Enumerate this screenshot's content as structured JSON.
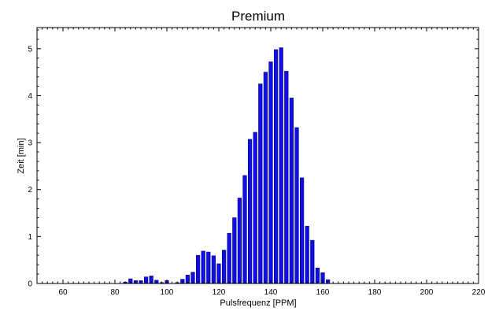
{
  "chart_data": {
    "type": "bar",
    "title": "Premium",
    "xlabel": "Pulsfrequenz [PPM]",
    "ylabel": "Zeit [min]",
    "xlim": [
      50,
      220
    ],
    "ylim": [
      0,
      5.45
    ],
    "x_ticks": [
      60,
      80,
      100,
      120,
      140,
      160,
      180,
      200,
      220
    ],
    "y_ticks": [
      0,
      1,
      2,
      3,
      4,
      5
    ],
    "grid": false,
    "bar_color": "#1010e6",
    "bar_color_dark": "#000080",
    "x": [
      84,
      86,
      88,
      90,
      92,
      94,
      96,
      98,
      100,
      102,
      104,
      106,
      108,
      110,
      112,
      114,
      116,
      118,
      120,
      122,
      124,
      126,
      128,
      130,
      132,
      134,
      136,
      138,
      140,
      142,
      144,
      146,
      148,
      150,
      152,
      154,
      156,
      158,
      160,
      162
    ],
    "values": [
      0.03,
      0.1,
      0.06,
      0.06,
      0.14,
      0.16,
      0.07,
      0.02,
      0.06,
      0.0,
      0.02,
      0.09,
      0.18,
      0.24,
      0.6,
      0.69,
      0.67,
      0.59,
      0.42,
      0.71,
      1.07,
      1.4,
      1.82,
      2.3,
      3.07,
      3.22,
      4.25,
      4.5,
      4.72,
      4.98,
      5.02,
      4.52,
      3.95,
      3.32,
      2.25,
      1.22,
      0.92,
      0.33,
      0.23,
      0.08
    ]
  }
}
